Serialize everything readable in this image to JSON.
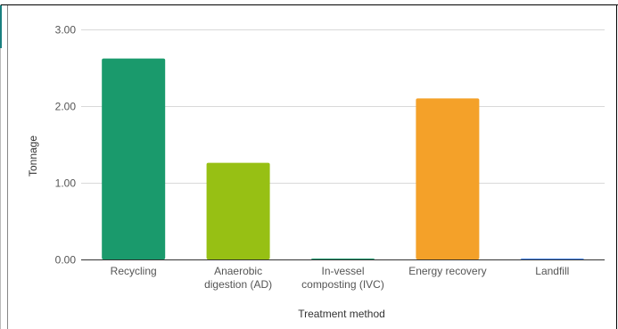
{
  "chart_data": {
    "type": "bar",
    "title": "",
    "xlabel": "Treatment method",
    "ylabel": "Tonnage",
    "categories": [
      [
        "Recycling"
      ],
      [
        "Anaerobic",
        "digestion (AD)"
      ],
      [
        "In-vessel",
        "composting (IVC)"
      ],
      [
        "Energy recovery"
      ],
      [
        "Landfill"
      ]
    ],
    "values": [
      2.62,
      1.26,
      0.01,
      2.1,
      0.01
    ],
    "colors": [
      "#1a9a6c",
      "#97c014",
      "#1a9a6c",
      "#f4a129",
      "#4285f4"
    ],
    "ylim": [
      0,
      3
    ],
    "yticks": [
      "0.00",
      "1.00",
      "2.00",
      "3.00"
    ],
    "grid": true,
    "legend": "none"
  }
}
